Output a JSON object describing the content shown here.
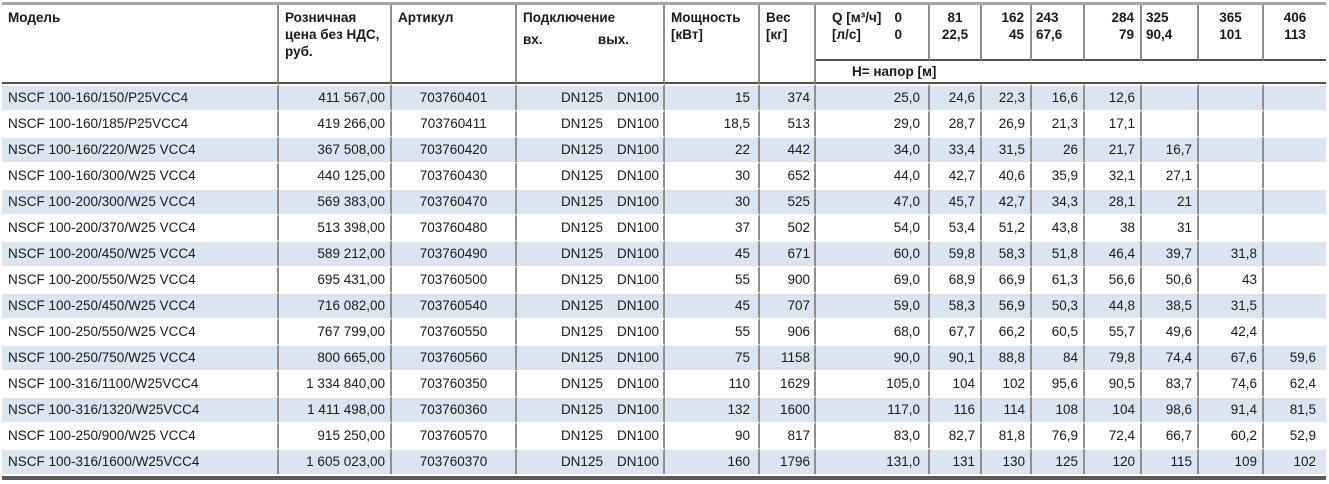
{
  "table": {
    "headers": {
      "model": "Модель",
      "price": "Розничная\nцена без НДС,\nруб.",
      "article": "Артикул",
      "connection": "Подключение",
      "connection_in": "вх.",
      "connection_out": "вых.",
      "power": "Мощность\n[кВт]",
      "weight": "Вес\n[кг]",
      "flow_label": "Q [м³/ч]",
      "flow_zero_m3h": "0",
      "flow_unit_ls": "[л/с]",
      "flow_zero_ls": "0",
      "head_label": "Н= напор [м]",
      "flow_columns": [
        {
          "m3h": "81",
          "ls": "22,5"
        },
        {
          "m3h": "162",
          "ls": "45"
        },
        {
          "m3h": "243",
          "ls": "67,6"
        },
        {
          "m3h": "284",
          "ls": "79"
        },
        {
          "m3h": "325",
          "ls": "90,4"
        },
        {
          "m3h": "365",
          "ls": "101"
        },
        {
          "m3h": "406",
          "ls": "113"
        }
      ]
    },
    "rows": [
      {
        "model": "NSCF 100-160/150/P25VCC4",
        "price": "411 567,00",
        "article": "703760401",
        "conn_in": "DN125",
        "conn_out": "DN100",
        "power": "15",
        "weight": "374",
        "head": [
          "25,0",
          "24,6",
          "22,3",
          "16,6",
          "12,6",
          "",
          "",
          ""
        ]
      },
      {
        "model": "NSCF 100-160/185/P25VCC4",
        "price": "419 266,00",
        "article": "703760411",
        "conn_in": "DN125",
        "conn_out": "DN100",
        "power": "18,5",
        "weight": "513",
        "head": [
          "29,0",
          "28,7",
          "26,9",
          "21,3",
          "17,1",
          "",
          "",
          ""
        ]
      },
      {
        "model": "NSCF 100-160/220/W25 VCC4",
        "price": "367 508,00",
        "article": "703760420",
        "conn_in": "DN125",
        "conn_out": "DN100",
        "power": "22",
        "weight": "442",
        "head": [
          "34,0",
          "33,4",
          "31,5",
          "26",
          "21,7",
          "16,7",
          "",
          ""
        ]
      },
      {
        "model": "NSCF 100-160/300/W25 VCC4",
        "price": "440 125,00",
        "article": "703760430",
        "conn_in": "DN125",
        "conn_out": "DN100",
        "power": "30",
        "weight": "652",
        "head": [
          "44,0",
          "42,7",
          "40,6",
          "35,9",
          "32,1",
          "27,1",
          "",
          ""
        ]
      },
      {
        "model": "NSCF 100-200/300/W25 VCC4",
        "price": "569 383,00",
        "article": "703760470",
        "conn_in": "DN125",
        "conn_out": "DN100",
        "power": "30",
        "weight": "525",
        "head": [
          "47,0",
          "45,7",
          "42,7",
          "34,3",
          "28,1",
          "21",
          "",
          ""
        ]
      },
      {
        "model": "NSCF 100-200/370/W25 VCC4",
        "price": "513 398,00",
        "article": "703760480",
        "conn_in": "DN125",
        "conn_out": "DN100",
        "power": "37",
        "weight": "502",
        "head": [
          "54,0",
          "53,4",
          "51,2",
          "43,8",
          "38",
          "31",
          "",
          ""
        ]
      },
      {
        "model": "NSCF 100-200/450/W25 VCC4",
        "price": "589 212,00",
        "article": "703760490",
        "conn_in": "DN125",
        "conn_out": "DN100",
        "power": "45",
        "weight": "671",
        "head": [
          "60,0",
          "59,8",
          "58,3",
          "51,8",
          "46,4",
          "39,7",
          "31,8",
          ""
        ]
      },
      {
        "model": "NSCF 100-200/550/W25 VCC4",
        "price": "695 431,00",
        "article": "703760500",
        "conn_in": "DN125",
        "conn_out": "DN100",
        "power": "55",
        "weight": "900",
        "head": [
          "69,0",
          "68,9",
          "66,9",
          "61,3",
          "56,6",
          "50,6",
          "43",
          ""
        ]
      },
      {
        "model": "NSCF 100-250/450/W25 VCC4",
        "price": "716 082,00",
        "article": "703760540",
        "conn_in": "DN125",
        "conn_out": "DN100",
        "power": "45",
        "weight": "707",
        "head": [
          "59,0",
          "58,3",
          "56,9",
          "50,3",
          "44,8",
          "38,5",
          "31,5",
          ""
        ]
      },
      {
        "model": "NSCF 100-250/550/W25 VCC4",
        "price": "767 799,00",
        "article": "703760550",
        "conn_in": "DN125",
        "conn_out": "DN100",
        "power": "55",
        "weight": "906",
        "head": [
          "68,0",
          "67,7",
          "66,2",
          "60,5",
          "55,7",
          "49,6",
          "42,4",
          ""
        ]
      },
      {
        "model": "NSCF 100-250/750/W25 VCC4",
        "price": "800 665,00",
        "article": "703760560",
        "conn_in": "DN125",
        "conn_out": "DN100",
        "power": "75",
        "weight": "1158",
        "head": [
          "90,0",
          "90,1",
          "88,8",
          "84",
          "79,8",
          "74,4",
          "67,6",
          "59,6"
        ]
      },
      {
        "model": "NSCF 100-316/1100/W25VCC4",
        "price": "1 334 840,00",
        "article": "703760350",
        "conn_in": "DN125",
        "conn_out": "DN100",
        "power": "110",
        "weight": "1629",
        "head": [
          "105,0",
          "104",
          "102",
          "95,6",
          "90,5",
          "83,7",
          "74,6",
          "62,4"
        ]
      },
      {
        "model": "NSCF 100-316/1320/W25VCC4",
        "price": "1 411 498,00",
        "article": "703760360",
        "conn_in": "DN125",
        "conn_out": "DN100",
        "power": "132",
        "weight": "1600",
        "head": [
          "117,0",
          "116",
          "114",
          "108",
          "104",
          "98,6",
          "91,4",
          "81,5"
        ]
      },
      {
        "model": "NSCF 100-250/900/W25 VCC4",
        "price": "915 250,00",
        "article": "703760570",
        "conn_in": "DN125",
        "conn_out": "DN100",
        "power": "90",
        "weight": "817",
        "head": [
          "83,0",
          "82,7",
          "81,8",
          "76,9",
          "72,4",
          "66,7",
          "60,2",
          "52,9"
        ]
      },
      {
        "model": "NSCF 100-316/1600/W25VCC4",
        "price": "1 605 023,00",
        "article": "703760370",
        "conn_in": "DN125",
        "conn_out": "DN100",
        "power": "160",
        "weight": "1796",
        "head": [
          "131,0",
          "131",
          "130",
          "125",
          "120",
          "115",
          "109",
          "102"
        ]
      }
    ]
  },
  "colors": {
    "row_stripe": "#dbe5f1",
    "grid_line": "#8f8f8f",
    "header_rule": "#4f4f4f",
    "outer_top": "#a6a6a6",
    "outer_bottom": "#5a5a5a",
    "text": "#1a1a1a"
  }
}
